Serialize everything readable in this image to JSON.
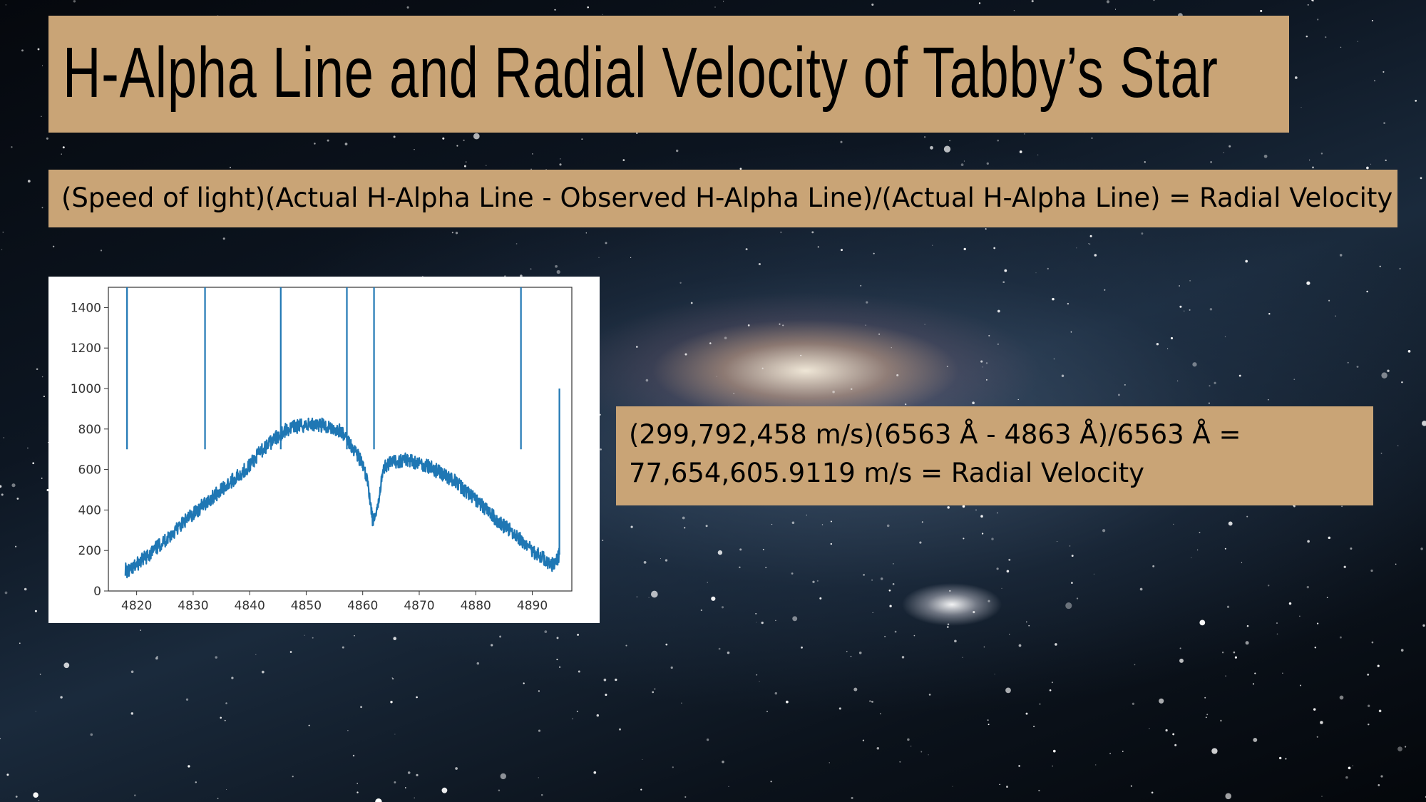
{
  "title": "H-Alpha Line and Radial Velocity of Tabby’s Star",
  "formula": "(Speed of light)(Actual H-Alpha Line - Observed H-Alpha Line)/(Actual H-Alpha Line) = Radial Velocity",
  "result": {
    "line1": "(299,792,458 m/s)(6563 Å - 4863 Å)/6563 Å =",
    "line2": "77,654,605.9119 m/s = Radial Velocity"
  },
  "colors": {
    "panel": "#c9a476",
    "series": "#1f77b4"
  },
  "chart_data": {
    "type": "line",
    "title": "",
    "xlabel": "",
    "ylabel": "",
    "xlim": [
      4815,
      4897
    ],
    "ylim": [
      0,
      1500
    ],
    "grid": false,
    "legend": "none",
    "x_ticks": [
      "4820",
      "4830",
      "4840",
      "4850",
      "4860",
      "4870",
      "4880",
      "4890"
    ],
    "y_ticks": [
      "0",
      "200",
      "400",
      "600",
      "800",
      "1000",
      "1200",
      "1400"
    ],
    "series": [
      {
        "x": [
          4818.0,
          4818.3,
          4819,
          4820,
          4822,
          4825,
          4828,
          4830,
          4832,
          4835,
          4838,
          4840,
          4842,
          4844,
          4846,
          4848,
          4850,
          4852,
          4854,
          4856,
          4857.5,
          4859,
          4860,
          4861,
          4861.8,
          4862.5,
          4863.3,
          4864,
          4866,
          4868,
          4870,
          4872,
          4874,
          4876,
          4878,
          4880,
          4882,
          4884,
          4886,
          4888,
          4890,
          4892,
          4893.5,
          4894.5,
          4894.8
        ],
        "y": [
          110,
          95,
          100,
          130,
          175,
          250,
          330,
          380,
          430,
          500,
          570,
          620,
          690,
          740,
          790,
          810,
          820,
          825,
          810,
          790,
          740,
          680,
          620,
          520,
          340,
          380,
          560,
          620,
          640,
          650,
          630,
          610,
          580,
          550,
          500,
          450,
          400,
          340,
          300,
          250,
          200,
          160,
          130,
          160,
          180
        ]
      },
      {
        "x": [
          4818.3,
          4832.1,
          4845.5,
          4857.2,
          4862.0,
          4888.0,
          4894.8
        ],
        "y": [
          1500,
          1500,
          1500,
          1500,
          1500,
          1500,
          1000
        ]
      }
    ]
  }
}
